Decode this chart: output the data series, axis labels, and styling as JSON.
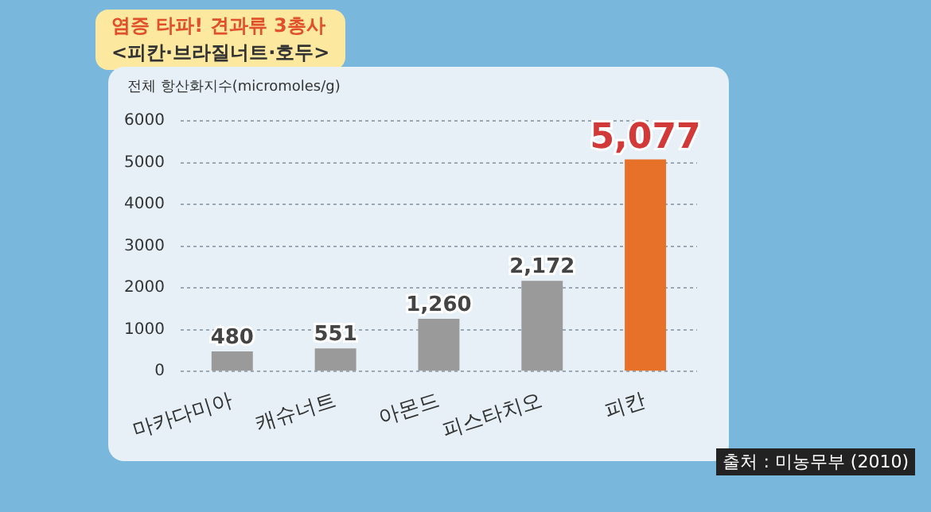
{
  "chart_data": {
    "type": "bar",
    "title": "염증 타파! 견과류 3총사",
    "subtitle": "<피칸·브라질너트·호두>",
    "ylabel": "전체 항산화지수(micromoles/g)",
    "categories": [
      "마카다미아",
      "캐슈너트",
      "아몬드",
      "피스타치오",
      "피칸"
    ],
    "values": [
      480,
      551,
      1260,
      2172,
      5077
    ],
    "colors": [
      "#9a9a9a",
      "#9a9a9a",
      "#9a9a9a",
      "#9a9a9a",
      "#e8712a"
    ],
    "value_labels": [
      "480",
      "551",
      "1,260",
      "2,172",
      "5,077"
    ],
    "ylim": [
      0,
      6000
    ],
    "yticks": [
      0,
      1000,
      2000,
      3000,
      4000,
      5000,
      6000
    ],
    "grid": "y",
    "annotations": [
      "출처 : 미농무부 (2010)"
    ]
  }
}
